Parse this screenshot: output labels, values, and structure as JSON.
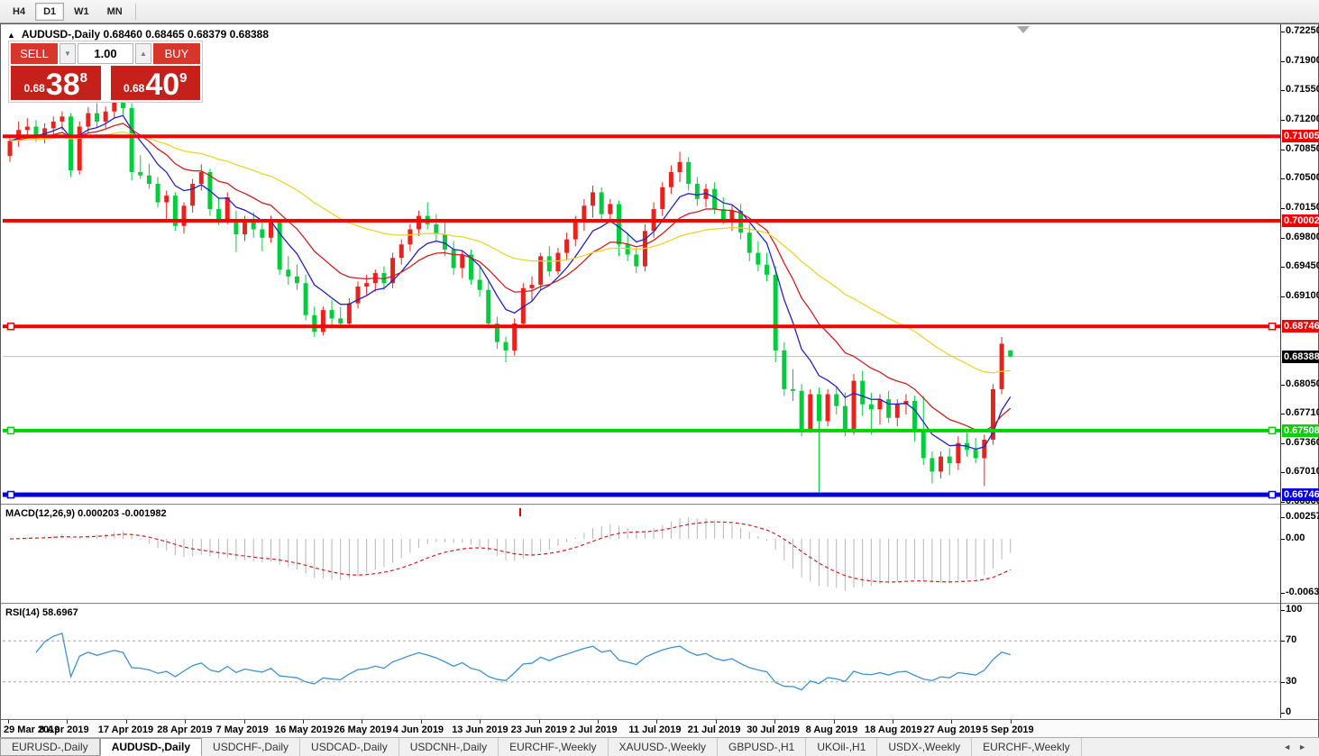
{
  "toolbar": {
    "periods": [
      "H4",
      "D1",
      "W1",
      "MN"
    ],
    "active_period": "D1"
  },
  "window": {
    "title": {
      "collapse_arrow": "▲",
      "symbol": "AUDUSD-,Daily",
      "ohlc": "0.68460 0.68465 0.68379 0.68388"
    },
    "trade_panel": {
      "sell_label": "SELL",
      "buy_label": "BUY",
      "volume": "1.00",
      "spinner_down": "▼",
      "spinner_up": "▲",
      "sell_small": "0.68",
      "sell_big": "38",
      "sell_sup": "8",
      "buy_small": "0.68",
      "buy_big": "40",
      "buy_sup": "9"
    }
  },
  "price_axis": {
    "ticks": [
      {
        "value": 0.7225,
        "text": "0.72250"
      },
      {
        "value": 0.719,
        "text": "0.71900"
      },
      {
        "value": 0.7155,
        "text": "0.71550"
      },
      {
        "value": 0.712,
        "text": "0.71200"
      },
      {
        "value": 0.7085,
        "text": "0.70850"
      },
      {
        "value": 0.705,
        "text": "0.70500"
      },
      {
        "value": 0.7015,
        "text": "0.70150"
      },
      {
        "value": 0.698,
        "text": "0.69800"
      },
      {
        "value": 0.6945,
        "text": "0.69450"
      },
      {
        "value": 0.691,
        "text": "0.69100"
      },
      {
        "value": 0.6805,
        "text": "0.68050"
      },
      {
        "value": 0.6771,
        "text": "0.67710"
      },
      {
        "value": 0.6736,
        "text": "0.67360"
      },
      {
        "value": 0.6701,
        "text": "0.67010"
      },
      {
        "value": 0.6666,
        "text": "0.66660"
      }
    ],
    "badges": [
      {
        "value": 0.71005,
        "text": "0.71005",
        "bg": "#f50000"
      },
      {
        "value": 0.70002,
        "text": "0.70002",
        "bg": "#f50000"
      },
      {
        "value": 0.68746,
        "text": "0.68746",
        "bg": "#f50000"
      },
      {
        "value": 0.68388,
        "text": "0.68388",
        "bg": "#000000"
      },
      {
        "value": 0.67508,
        "text": "0.67508",
        "bg": "#00d400"
      },
      {
        "value": 0.66746,
        "text": "0.66746",
        "bg": "#0000e0"
      }
    ]
  },
  "macd_panel": {
    "label": "MACD(12,26,9) 0.000203 -0.001982",
    "axis_labels": [
      {
        "value": 0.002574,
        "text": "0.002574"
      },
      {
        "value": 0,
        "text": "0.00"
      },
      {
        "value": -0.006326,
        "text": "-0.006326"
      }
    ]
  },
  "rsi_panel": {
    "label": "RSI(14) 58.6967",
    "axis_labels": [
      {
        "value": 100,
        "text": "100"
      },
      {
        "value": 70,
        "text": "70"
      },
      {
        "value": 30,
        "text": "30"
      },
      {
        "value": 0,
        "text": "0"
      }
    ],
    "level_lines": [
      70,
      30
    ]
  },
  "date_axis": {
    "labels": [
      "29 Mar 2019",
      "8 Apr 2019",
      "17 Apr 2019",
      "28 Apr 2019",
      "7 May 2019",
      "16 May 2019",
      "26 May 2019",
      "4 Jun 2019",
      "13 Jun 2019",
      "23 Jun 2019",
      "2 Jul 2019",
      "11 Jul 2019",
      "21 Jul 2019",
      "30 Jul 2019",
      "8 Aug 2019",
      "18 Aug 2019",
      "27 Aug 2019",
      "5 Sep 2019"
    ]
  },
  "tabs": {
    "items": [
      "EURUSD-,Daily",
      "AUDUSD-,Daily",
      "USDCHF-,Daily",
      "USDCAD-,Daily",
      "USDCNH-,Daily",
      "EURCHF-,Weekly",
      "XAUUSD-,Weekly",
      "GBPUSD-,H1",
      "UKOil-,H1",
      "USDX-,Weekly",
      "EURCHF-,Weekly"
    ],
    "active_index": 1,
    "scroll_left": "◄",
    "scroll_right": "►"
  },
  "chart_data": {
    "type": "candlestick",
    "symbol": "AUDUSD",
    "timeframe": "Daily",
    "title": "AUDUSD-,Daily",
    "current_bar_ohlc": [
      0.6846,
      0.68465,
      0.68379,
      0.68388
    ],
    "y_range": [
      0.6666,
      0.7225
    ],
    "up_color": "#e8231c",
    "down_color": "#00ce3d",
    "candles": [
      [
        0.7077,
        0.7098,
        0.707,
        0.7095
      ],
      [
        0.7095,
        0.7118,
        0.7088,
        0.7108
      ],
      [
        0.7108,
        0.7122,
        0.7098,
        0.7112
      ],
      [
        0.7112,
        0.712,
        0.7094,
        0.71
      ],
      [
        0.71,
        0.7116,
        0.7092,
        0.711
      ],
      [
        0.711,
        0.7124,
        0.7102,
        0.7118
      ],
      [
        0.7118,
        0.713,
        0.7108,
        0.7124
      ],
      [
        0.7124,
        0.7128,
        0.7052,
        0.706
      ],
      [
        0.706,
        0.7118,
        0.7055,
        0.7112
      ],
      [
        0.7112,
        0.7135,
        0.7104,
        0.7128
      ],
      [
        0.7128,
        0.714,
        0.711,
        0.7118
      ],
      [
        0.7118,
        0.7136,
        0.711,
        0.713
      ],
      [
        0.713,
        0.7148,
        0.7122,
        0.7142
      ],
      [
        0.7142,
        0.7152,
        0.7126,
        0.7134
      ],
      [
        0.7134,
        0.714,
        0.7048,
        0.7058
      ],
      [
        0.7058,
        0.7078,
        0.705,
        0.7054
      ],
      [
        0.7054,
        0.7068,
        0.7038,
        0.7044
      ],
      [
        0.7044,
        0.7052,
        0.7016,
        0.7022
      ],
      [
        0.7022,
        0.7036,
        0.7,
        0.703
      ],
      [
        0.703,
        0.7034,
        0.6988,
        0.6994
      ],
      [
        0.6994,
        0.7022,
        0.6985,
        0.7018
      ],
      [
        0.7018,
        0.705,
        0.701,
        0.7044
      ],
      [
        0.7044,
        0.7067,
        0.7036,
        0.7058
      ],
      [
        0.7058,
        0.7062,
        0.7006,
        0.7014
      ],
      [
        0.7014,
        0.7028,
        0.6995,
        0.7
      ],
      [
        0.7,
        0.7034,
        0.6996,
        0.7028
      ],
      [
        0.7,
        0.7012,
        0.6963,
        0.6984
      ],
      [
        0.6984,
        0.7006,
        0.6976,
        0.7002
      ],
      [
        0.7002,
        0.701,
        0.698,
        0.699
      ],
      [
        0.699,
        0.6998,
        0.6964,
        0.698
      ],
      [
        0.698,
        0.7006,
        0.6974,
        0.6998
      ],
      [
        0.6998,
        0.7002,
        0.6936,
        0.6942
      ],
      [
        0.6942,
        0.6958,
        0.6924,
        0.6934
      ],
      [
        0.6934,
        0.6948,
        0.6918,
        0.6926
      ],
      [
        0.6926,
        0.6936,
        0.6882,
        0.6888
      ],
      [
        0.6888,
        0.6898,
        0.6862,
        0.6868
      ],
      [
        0.6868,
        0.6898,
        0.6864,
        0.6894
      ],
      [
        0.6894,
        0.6906,
        0.6876,
        0.6884
      ],
      [
        0.6884,
        0.6898,
        0.6872,
        0.6878
      ],
      [
        0.6878,
        0.6908,
        0.6874,
        0.6902
      ],
      [
        0.6902,
        0.6928,
        0.6896,
        0.6922
      ],
      [
        0.6922,
        0.6936,
        0.6912,
        0.6926
      ],
      [
        0.6926,
        0.6942,
        0.6916,
        0.6938
      ],
      [
        0.6938,
        0.6946,
        0.6918,
        0.6926
      ],
      [
        0.6926,
        0.6962,
        0.692,
        0.6956
      ],
      [
        0.6956,
        0.6978,
        0.6948,
        0.6972
      ],
      [
        0.6972,
        0.6996,
        0.6964,
        0.699
      ],
      [
        0.699,
        0.7012,
        0.6982,
        0.7006
      ],
      [
        0.7006,
        0.7022,
        0.699,
        0.6996
      ],
      [
        0.6996,
        0.7008,
        0.6976,
        0.6984
      ],
      [
        0.6984,
        0.7,
        0.6958,
        0.6966
      ],
      [
        0.6966,
        0.6976,
        0.6936,
        0.6944
      ],
      [
        0.6944,
        0.6964,
        0.6932,
        0.696
      ],
      [
        0.696,
        0.6966,
        0.6924,
        0.693
      ],
      [
        0.693,
        0.6946,
        0.691,
        0.6918
      ],
      [
        0.6918,
        0.6928,
        0.6872,
        0.6878
      ],
      [
        0.6878,
        0.6886,
        0.6848,
        0.6856
      ],
      [
        0.6856,
        0.6862,
        0.6832,
        0.6846
      ],
      [
        0.6846,
        0.6884,
        0.684,
        0.6878
      ],
      [
        0.6878,
        0.6926,
        0.6872,
        0.692
      ],
      [
        0.692,
        0.6934,
        0.6904,
        0.6924
      ],
      [
        0.6924,
        0.6962,
        0.6918,
        0.6958
      ],
      [
        0.6958,
        0.697,
        0.6934,
        0.694
      ],
      [
        0.694,
        0.6968,
        0.6936,
        0.6962
      ],
      [
        0.6962,
        0.6986,
        0.6954,
        0.6978
      ],
      [
        0.6978,
        0.7006,
        0.697,
        0.6998
      ],
      [
        0.6998,
        0.7026,
        0.6988,
        0.7018
      ],
      [
        0.7018,
        0.7042,
        0.7004,
        0.7034
      ],
      [
        0.7034,
        0.704,
        0.7,
        0.7008
      ],
      [
        0.7008,
        0.7026,
        0.7,
        0.702
      ],
      [
        0.702,
        0.7024,
        0.6958,
        0.6972
      ],
      [
        0.6972,
        0.6986,
        0.6952,
        0.696
      ],
      [
        0.696,
        0.6968,
        0.6938,
        0.6946
      ],
      [
        0.6946,
        0.6996,
        0.694,
        0.6988
      ],
      [
        0.6988,
        0.7022,
        0.698,
        0.7014
      ],
      [
        0.7014,
        0.7046,
        0.7006,
        0.704
      ],
      [
        0.704,
        0.7066,
        0.7032,
        0.7058
      ],
      [
        0.7058,
        0.7082,
        0.7046,
        0.707
      ],
      [
        0.707,
        0.7076,
        0.7036,
        0.7044
      ],
      [
        0.7044,
        0.7052,
        0.7018,
        0.7026
      ],
      [
        0.7026,
        0.7044,
        0.7016,
        0.7038
      ],
      [
        0.7038,
        0.7046,
        0.7008,
        0.7014
      ],
      [
        0.7014,
        0.7028,
        0.6996,
        0.7002
      ],
      [
        0.7002,
        0.7018,
        0.6988,
        0.7012
      ],
      [
        0.7012,
        0.702,
        0.6978,
        0.6986
      ],
      [
        0.6986,
        0.6996,
        0.6952,
        0.6962
      ],
      [
        0.6962,
        0.6976,
        0.694,
        0.6948
      ],
      [
        0.6948,
        0.6962,
        0.6928,
        0.6936
      ],
      [
        0.6936,
        0.6946,
        0.6832,
        0.6846
      ],
      [
        0.6846,
        0.6856,
        0.6792,
        0.68
      ],
      [
        0.68,
        0.6824,
        0.6786,
        0.6798
      ],
      [
        0.6798,
        0.6806,
        0.6744,
        0.6752
      ],
      [
        0.6752,
        0.68,
        0.6748,
        0.6794
      ],
      [
        0.6794,
        0.6802,
        0.6677,
        0.6762
      ],
      [
        0.6762,
        0.68,
        0.6756,
        0.6794
      ],
      [
        0.6794,
        0.6802,
        0.677,
        0.678
      ],
      [
        0.678,
        0.6796,
        0.6744,
        0.6752
      ],
      [
        0.6752,
        0.6818,
        0.6746,
        0.681
      ],
      [
        0.681,
        0.6822,
        0.6768,
        0.6782
      ],
      [
        0.6782,
        0.6796,
        0.6746,
        0.6776
      ],
      [
        0.6776,
        0.6794,
        0.6758,
        0.6788
      ],
      [
        0.6788,
        0.6798,
        0.676,
        0.6766
      ],
      [
        0.6766,
        0.6788,
        0.6756,
        0.6782
      ],
      [
        0.6782,
        0.6794,
        0.677,
        0.6786
      ],
      [
        0.6786,
        0.6792,
        0.6738,
        0.6752
      ],
      [
        0.6752,
        0.6792,
        0.671,
        0.6718
      ],
      [
        0.6718,
        0.6726,
        0.6688,
        0.6702
      ],
      [
        0.6702,
        0.6726,
        0.6694,
        0.672
      ],
      [
        0.672,
        0.673,
        0.6698,
        0.6712
      ],
      [
        0.6712,
        0.6744,
        0.6704,
        0.6736
      ],
      [
        0.6736,
        0.6748,
        0.672,
        0.6728
      ],
      [
        0.6728,
        0.6742,
        0.6712,
        0.6718
      ],
      [
        0.6718,
        0.6746,
        0.6685,
        0.674
      ],
      [
        0.674,
        0.6806,
        0.6734,
        0.68
      ],
      [
        0.68,
        0.6862,
        0.6794,
        0.6854
      ],
      [
        0.6846,
        0.68465,
        0.68379,
        0.68388
      ]
    ],
    "moving_averages": [
      {
        "period": 7,
        "color": "#2323c8",
        "name": "fast-ma-blue"
      },
      {
        "period": 15,
        "color": "#cf2020",
        "name": "mid-ma-red"
      },
      {
        "period": 40,
        "color": "#e9d52e",
        "name": "slow-ma-yellow"
      }
    ],
    "horizontal_lines": [
      {
        "price": 0.71005,
        "color": "#f50000",
        "thickness": 4,
        "handles": false
      },
      {
        "price": 0.70002,
        "color": "#f50000",
        "thickness": 4,
        "handles": false
      },
      {
        "price": 0.68746,
        "color": "#f50000",
        "thickness": 4,
        "handles": true
      },
      {
        "price": 0.67508,
        "color": "#00d400",
        "thickness": 4,
        "handles": true
      },
      {
        "price": 0.66746,
        "color": "#0000e0",
        "thickness": 5,
        "handles": true
      }
    ],
    "current_price": 0.68388,
    "macd": {
      "fast": 12,
      "slow": 26,
      "signal": 9,
      "value": 0.000203,
      "signal_value": -0.001982,
      "range": [
        -0.006326,
        0.002574
      ],
      "histogram_color": "#b6b6b6",
      "signal_color": "#d02020"
    },
    "rsi": {
      "period": 14,
      "value": 58.6967,
      "range": [
        0,
        100
      ],
      "levels": [
        70,
        30
      ],
      "color": "#3f92d2"
    }
  }
}
